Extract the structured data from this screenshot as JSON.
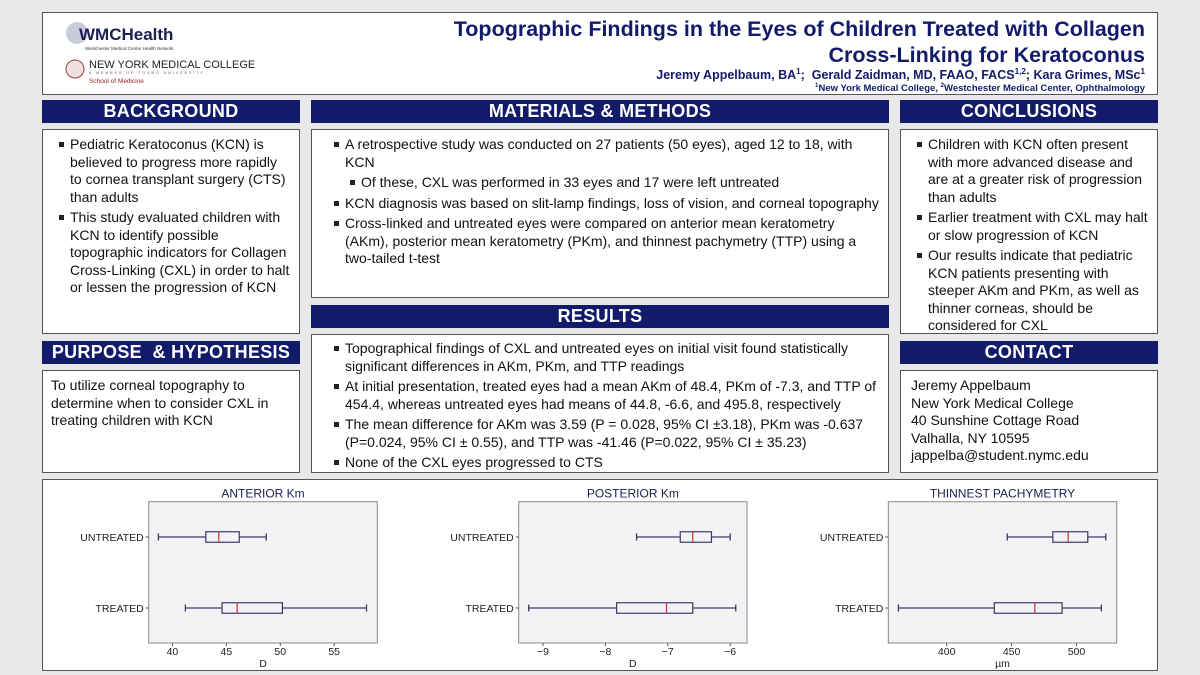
{
  "header": {
    "logo_wmc": "WMCHealth",
    "logo_wmc_tagline": "Westchester Medical Center Health Network",
    "logo_nymc": "NEW YORK MEDICAL COLLEGE",
    "logo_nymc_tagline": "A MEMBER OF TOURO UNIVERSITY",
    "logo_nymc_school": "School of Medicine",
    "title_line1": "Topographic Findings in the Eyes of Children Treated with Collagen",
    "title_line2": "Cross-Linking for Keratoconus",
    "authors": [
      {
        "name": "Jeremy Appelbaum, BA",
        "sup": "1"
      },
      {
        "name": "Gerald Zaidman, MD, FAAO, FACS",
        "sup": "1,2"
      },
      {
        "name": "Kara Grimes, MSc",
        "sup": "1"
      }
    ],
    "affiliations": [
      {
        "sup": "1",
        "name": "New York Medical College"
      },
      {
        "sup": "2",
        "name": "Westchester Medical Center, Ophthalmology"
      }
    ]
  },
  "background": {
    "heading": "BACKGROUND",
    "items": [
      "Pediatric Keratoconus (KCN) is believed to progress more rapidly to cornea transplant surgery (CTS) than adults",
      "This study evaluated children with KCN to identify possible topographic indicators for Collagen Cross-Linking (CXL) in order to halt or lessen the progression of KCN"
    ]
  },
  "purpose": {
    "heading": "PURPOSE  & HYPOTHESIS",
    "text": "To utilize corneal topography to determine when to consider CXL in treating children with KCN"
  },
  "methods": {
    "heading": "MATERIALS & METHODS",
    "items": [
      "A retrospective study was conducted on 27 patients (50 eyes), aged 12 to 18, with KCN",
      "Of these, CXL was performed in 33 eyes and 17 were left untreated",
      "KCN diagnosis was based on slit-lamp findings, loss of vision, and corneal topography",
      "Cross-linked and untreated eyes were compared on anterior mean keratometry (AKm), posterior mean keratometry (PKm), and thinnest pachymetry (TTP) using a two-tailed t-test"
    ]
  },
  "results": {
    "heading": "RESULTS",
    "items": [
      "Topographical findings of CXL and untreated eyes on initial visit found statistically significant differences in AKm, PKm, and TTP readings",
      "At initial presentation, treated eyes had a mean AKm of 48.4, PKm of -7.3, and TTP of 454.4, whereas untreated eyes had means of 44.8, -6.6, and 495.8, respectively",
      "The mean difference for AKm was 3.59 (P = 0.028, 95% CI ±3.18), PKm was -0.637 (P=0.024, 95% CI ± 0.55), and TTP was -41.46 (P=0.022, 95% CI ± 35.23)",
      "None of the CXL eyes progressed to CTS"
    ]
  },
  "conclusions": {
    "heading": "CONCLUSIONS",
    "items": [
      "Children with KCN often present with more advanced disease and are at a greater risk of progression than adults",
      "Earlier treatment with CXL may halt or slow progression of KCN",
      "Our results indicate that pediatric KCN patients presenting with steeper AKm and PKm, as well as thinner corneas, should be considered for CXL"
    ]
  },
  "contact": {
    "heading": "CONTACT",
    "lines": [
      "Jeremy Appelbaum",
      "New York Medical College",
      "40 Sunshine Cottage Road",
      "Valhalla, NY 10595",
      "jappelba@student.nymc.edu"
    ]
  },
  "colors": {
    "navy": "#121a6a",
    "box_edge": "#3a3a6a",
    "median": "#d03030",
    "plot_bg": "#f3f3f5"
  },
  "chart_data": [
    {
      "type": "boxplot",
      "orientation": "horizontal",
      "title": "ANTERIOR Km",
      "xlabel": "D",
      "xlim": [
        37.8,
        59.0
      ],
      "xticks": [
        40,
        45,
        50,
        55
      ],
      "grid": false,
      "categories": [
        "UNTREATED",
        "TREATED"
      ],
      "series": [
        {
          "category": "UNTREATED",
          "min": 38.7,
          "q1": 43.1,
          "median": 44.3,
          "q3": 46.2,
          "max": 48.7
        },
        {
          "category": "TREATED",
          "min": 41.2,
          "q1": 44.6,
          "median": 46.0,
          "q3": 50.2,
          "max": 58.0
        }
      ]
    },
    {
      "type": "boxplot",
      "orientation": "horizontal",
      "title": "POSTERIOR Km",
      "xlabel": "D",
      "xlim": [
        -9.39,
        -5.73
      ],
      "xticks": [
        -9,
        -8,
        -7,
        -6
      ],
      "xtick_labels": [
        "−9",
        "−8",
        "−7",
        "−6"
      ],
      "grid": false,
      "categories": [
        "UNTREATED",
        "TREATED"
      ],
      "series": [
        {
          "category": "UNTREATED",
          "min": -7.5,
          "q1": -6.8,
          "median": -6.6,
          "q3": -6.3,
          "max": -6.0
        },
        {
          "category": "TREATED",
          "min": -9.23,
          "q1": -7.82,
          "median": -7.02,
          "q3": -6.6,
          "max": -5.91
        }
      ]
    },
    {
      "type": "boxplot",
      "orientation": "horizontal",
      "title": "THINNEST PACHYMETRY",
      "xlabel": "µm",
      "xlim": [
        355,
        531
      ],
      "xticks": [
        400,
        450,
        500
      ],
      "grid": false,
      "categories": [
        "UNTREATED",
        "TREATED"
      ],
      "series": [
        {
          "category": "UNTREATED",
          "min": 446.7,
          "q1": 481.8,
          "median": 493.6,
          "q3": 508.7,
          "max": 522.6
        },
        {
          "category": "TREATED",
          "min": 362.8,
          "q1": 436.7,
          "median": 467.9,
          "q3": 488.9,
          "max": 519.2
        }
      ]
    }
  ]
}
